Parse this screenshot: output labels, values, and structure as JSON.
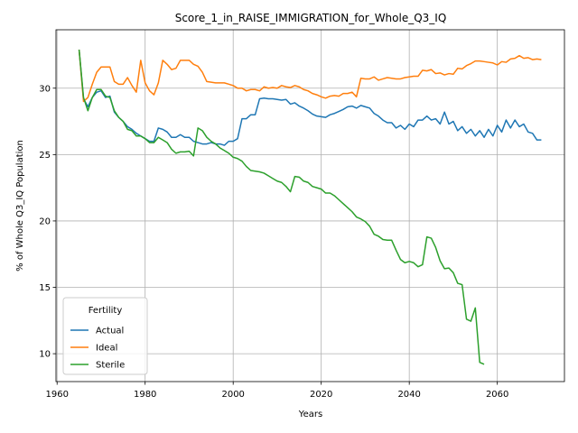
{
  "chart_data": {
    "type": "line",
    "title": "Score_1_in_RAISE_IMMIGRATION_for_Whole_Q3_IQ",
    "x_label": "Years",
    "y_label": "% of Whole Q3_IQ Population",
    "x": [
      1965,
      1966,
      1967,
      1968,
      1969,
      1970,
      1971,
      1972,
      1973,
      1974,
      1975,
      1976,
      1977,
      1978,
      1979,
      1980,
      1981,
      1982,
      1983,
      1984,
      1985,
      1986,
      1987,
      1988,
      1989,
      1990,
      1991,
      1992,
      1993,
      1994,
      1995,
      1996,
      1997,
      1998,
      1999,
      2000,
      2001,
      2002,
      2003,
      2004,
      2005,
      2006,
      2007,
      2008,
      2009,
      2010,
      2011,
      2012,
      2013,
      2014,
      2015,
      2016,
      2017,
      2018,
      2019,
      2020,
      2021,
      2022,
      2023,
      2024,
      2025,
      2026,
      2027,
      2028,
      2029,
      2030,
      2031,
      2032,
      2033,
      2034,
      2035,
      2036,
      2037,
      2038,
      2039,
      2040,
      2041,
      2042,
      2043,
      2044,
      2045,
      2046,
      2047,
      2048,
      2049,
      2050,
      2051,
      2052,
      2053,
      2054,
      2055,
      2056,
      2057,
      2058,
      2059,
      2060,
      2061,
      2062,
      2063,
      2064,
      2065,
      2066,
      2067,
      2068,
      2069,
      2070
    ],
    "series": [
      {
        "name": "Actual",
        "color": "#1f77b4",
        "values": [
          32.9,
          29.2,
          28.6,
          29.3,
          29.7,
          29.8,
          29.3,
          29.4,
          28.2,
          27.8,
          27.5,
          27.1,
          26.9,
          26.6,
          26.4,
          26.2,
          26.0,
          26.0,
          27.0,
          26.9,
          26.7,
          26.3,
          26.3,
          26.5,
          26.3,
          26.3,
          26.0,
          25.9,
          25.8,
          25.8,
          25.9,
          25.8,
          25.8,
          25.7,
          26.0,
          26.0,
          26.2,
          27.7,
          27.7,
          28.0,
          28.0,
          29.2,
          29.25,
          29.2,
          29.2,
          29.15,
          29.1,
          29.15,
          28.8,
          28.9,
          28.65,
          28.5,
          28.3,
          28.05,
          27.9,
          27.85,
          27.8,
          28.0,
          28.1,
          28.25,
          28.4,
          28.6,
          28.65,
          28.5,
          28.7,
          28.6,
          28.5,
          28.1,
          27.9,
          27.6,
          27.4,
          27.4,
          27.0,
          27.2,
          26.9,
          27.3,
          27.1,
          27.6,
          27.6,
          27.9,
          27.6,
          27.7,
          27.3,
          28.2,
          27.3,
          27.5,
          26.8,
          27.1,
          26.6,
          26.9,
          26.4,
          26.8,
          26.3,
          26.9,
          26.4,
          27.2,
          26.7,
          27.6,
          27.0,
          27.6,
          27.1,
          27.3,
          26.7,
          26.6,
          26.1,
          26.1
        ]
      },
      {
        "name": "Ideal",
        "color": "#ff7f0e",
        "values": [
          32.9,
          29.0,
          29.3,
          30.3,
          31.2,
          31.6,
          31.6,
          31.6,
          30.5,
          30.3,
          30.3,
          30.8,
          30.2,
          29.7,
          32.1,
          30.4,
          29.8,
          29.5,
          30.4,
          32.1,
          31.8,
          31.4,
          31.5,
          32.1,
          32.1,
          32.1,
          31.8,
          31.65,
          31.2,
          30.5,
          30.45,
          30.4,
          30.4,
          30.4,
          30.3,
          30.2,
          30.0,
          30.0,
          29.8,
          29.9,
          29.9,
          29.8,
          30.1,
          30.0,
          30.05,
          30.0,
          30.2,
          30.1,
          30.05,
          30.2,
          30.1,
          29.9,
          29.8,
          29.6,
          29.5,
          29.35,
          29.25,
          29.4,
          29.45,
          29.4,
          29.6,
          29.6,
          29.7,
          29.35,
          30.75,
          30.7,
          30.7,
          30.85,
          30.6,
          30.7,
          30.8,
          30.75,
          30.7,
          30.7,
          30.8,
          30.85,
          30.9,
          30.9,
          31.35,
          31.3,
          31.4,
          31.1,
          31.15,
          31.0,
          31.1,
          31.05,
          31.5,
          31.45,
          31.7,
          31.85,
          32.05,
          32.05,
          32.0,
          31.95,
          31.9,
          31.75,
          32.0,
          31.95,
          32.2,
          32.25,
          32.45,
          32.25,
          32.3,
          32.15,
          32.2,
          32.15
        ]
      },
      {
        "name": "Sterile",
        "color": "#2ca02c",
        "values": [
          32.9,
          29.3,
          28.3,
          29.3,
          29.9,
          29.9,
          29.4,
          29.3,
          28.3,
          27.8,
          27.5,
          26.9,
          26.8,
          26.4,
          26.4,
          26.2,
          25.9,
          25.9,
          26.3,
          26.1,
          25.9,
          25.4,
          25.1,
          25.2,
          25.2,
          25.25,
          24.9,
          27.0,
          26.8,
          26.3,
          26.0,
          25.8,
          25.5,
          25.3,
          25.1,
          24.8,
          24.7,
          24.5,
          24.1,
          23.8,
          23.75,
          23.7,
          23.6,
          23.4,
          23.2,
          23.0,
          22.9,
          22.6,
          22.2,
          23.35,
          23.3,
          23.0,
          22.9,
          22.6,
          22.5,
          22.4,
          22.1,
          22.1,
          21.9,
          21.6,
          21.3,
          21.0,
          20.7,
          20.3,
          20.15,
          19.95,
          19.6,
          19.0,
          18.85,
          18.6,
          18.55,
          18.55,
          17.8,
          17.1,
          16.85,
          16.95,
          16.85,
          16.55,
          16.7,
          18.8,
          18.7,
          18.0,
          17.0,
          16.4,
          16.45,
          16.1,
          15.3,
          15.2,
          12.6,
          12.45,
          13.45,
          9.35,
          9.2,
          null,
          null,
          null,
          null,
          null,
          null,
          null,
          null,
          null,
          null,
          null,
          null,
          null
        ]
      }
    ],
    "xlim": [
      1959.75,
      2075.25
    ],
    "xticks": [
      1960,
      1980,
      2000,
      2020,
      2040,
      2060
    ],
    "ylim": [
      7.9,
      34.4
    ],
    "yticks": [
      10,
      15,
      20,
      25,
      30
    ],
    "grid": true,
    "legend_title": "Fertility",
    "legend_loc": "lower left"
  }
}
